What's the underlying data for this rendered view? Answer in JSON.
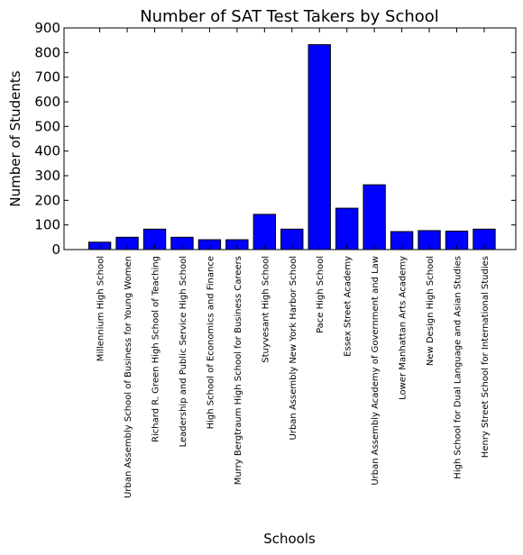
{
  "chart_data": {
    "type": "bar",
    "title": "Number of SAT Test Takers by School",
    "xlabel": "Schools",
    "ylabel": "Number of Students",
    "ylim": [
      0,
      900
    ],
    "yticks": [
      0,
      100,
      200,
      300,
      400,
      500,
      600,
      700,
      800,
      900
    ],
    "grid": false,
    "bar_color": "#0000ff",
    "categories": [
      "Millennium High School",
      "Urban Assembly School of Business for Young Women",
      "Richard R. Green High School of Teaching",
      "Leadership and Public Service High School",
      "High School of Economics and Finance",
      "Murry Bergtraum High School for Business Careers",
      "Stuyvesant High School",
      "Urban Assembly New York Harbor School",
      "Pace High School",
      "Essex Street Academy",
      "Urban Assembly Academy of Government and Law",
      "Lower Manhattan Arts Academy",
      "New Design High School",
      "High School for Dual Language and Asian Studies",
      "Henry Street School for International Studies"
    ],
    "values": [
      30,
      50,
      83,
      50,
      40,
      40,
      143,
      83,
      832,
      168,
      263,
      73,
      77,
      75,
      83
    ]
  }
}
